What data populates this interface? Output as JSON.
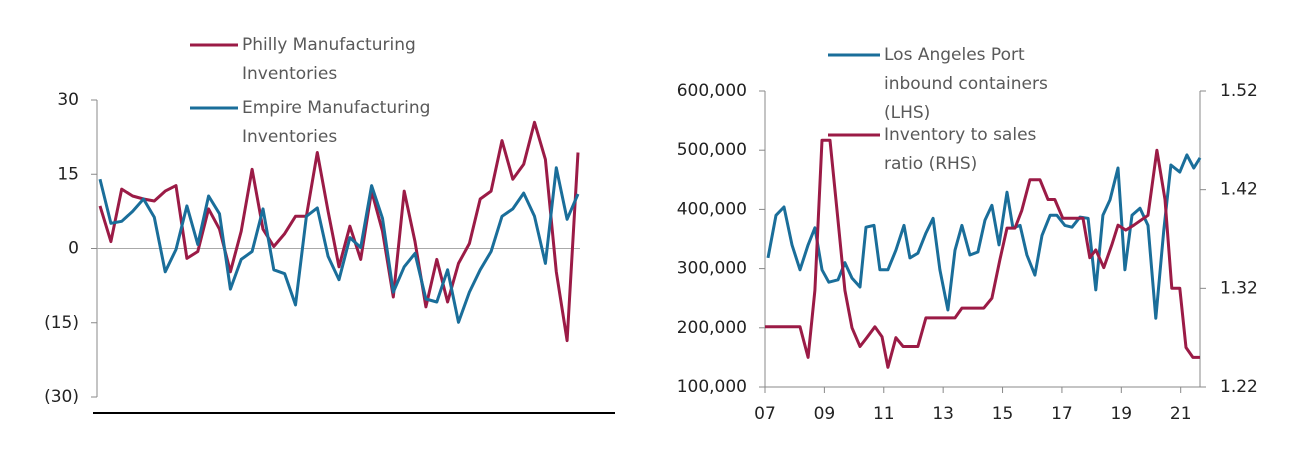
{
  "chart_data": [
    {
      "type": "line",
      "ylim": [
        -30,
        30
      ],
      "yticks": [
        {
          "value": -30,
          "label": "(30)"
        },
        {
          "value": -15,
          "label": "(15)"
        },
        0,
        15,
        30
      ],
      "series": [
        {
          "name": "Philly Manufacturing Inventories",
          "color": "#9b1b46",
          "values": [
            8.6,
            1.4,
            12,
            10.6,
            10,
            9.6,
            11.6,
            12.7,
            -2,
            -0.6,
            8,
            3.9,
            -4.7,
            3.5,
            16,
            3.9,
            0.4,
            3,
            6.5,
            6.5,
            19.4,
            7.5,
            -3.7,
            4.5,
            -2.2,
            11.6,
            3.5,
            -9.8,
            11.6,
            1.4,
            -11.8,
            -2.2,
            -10.8,
            -3,
            1,
            10,
            11.6,
            21.8,
            14,
            17,
            25.5,
            18,
            -4.7,
            -18.6,
            19.4
          ]
        },
        {
          "name": "Empire Manufacturing Inventories",
          "color": "#1a6e9a",
          "values": [
            14,
            5.1,
            5.5,
            7.5,
            10,
            6.3,
            -4.7,
            -0.2,
            8.6,
            0.8,
            10.6,
            7,
            -8.2,
            -2.2,
            -0.6,
            8,
            -4.3,
            -5.1,
            -11.4,
            6.5,
            8.2,
            -1.6,
            -6.3,
            2.2,
            0.2,
            12.7,
            6.1,
            -8.8,
            -3.7,
            -1,
            -10.2,
            -10.8,
            -4.3,
            -14.9,
            -8.8,
            -4.3,
            -0.6,
            6.5,
            8,
            11.2,
            6.5,
            -3,
            16.3,
            5.9,
            11
          ]
        }
      ]
    },
    {
      "type": "line",
      "xlim": [
        2007,
        2021.65
      ],
      "xticks": [
        {
          "value": 2007,
          "label": "07"
        },
        {
          "value": 2009,
          "label": "09"
        },
        {
          "value": 2011,
          "label": "11"
        },
        {
          "value": 2013,
          "label": "13"
        },
        {
          "value": 2015,
          "label": "15"
        },
        {
          "value": 2017,
          "label": "17"
        },
        {
          "value": 2019,
          "label": "19"
        },
        {
          "value": 2021,
          "label": "21"
        }
      ],
      "ylim": [
        100000,
        600000
      ],
      "yticks": [
        {
          "value": 100000,
          "label": "100,000"
        },
        {
          "value": 200000,
          "label": "200,000"
        },
        {
          "value": 300000,
          "label": "300,000"
        },
        {
          "value": 400000,
          "label": "400,000"
        },
        {
          "value": 500000,
          "label": "500,000"
        },
        {
          "value": 600000,
          "label": "600,000"
        }
      ],
      "y2lim": [
        1.22,
        1.52
      ],
      "y2ticks": [
        1.22,
        1.32,
        1.42,
        1.52
      ],
      "series": [
        {
          "name": "Los Angeles Port inbound containers (LHS)",
          "color": "#1a6e9a",
          "x": [
            2007.1,
            2007.37,
            2007.64,
            2007.91,
            2008.18,
            2008.45,
            2008.68,
            2008.92,
            2009.15,
            2009.46,
            2009.69,
            2009.93,
            2010.2,
            2010.4,
            2010.67,
            2010.87,
            2011.14,
            2011.41,
            2011.68,
            2011.88,
            2012.15,
            2012.42,
            2012.66,
            2012.89,
            2013.16,
            2013.4,
            2013.63,
            2013.9,
            2014.17,
            2014.41,
            2014.64,
            2014.88,
            2015.15,
            2015.35,
            2015.59,
            2015.82,
            2016.09,
            2016.33,
            2016.6,
            2016.83,
            2017.1,
            2017.34,
            2017.61,
            2017.88,
            2018.14,
            2018.38,
            2018.62,
            2018.89,
            2019.12,
            2019.36,
            2019.63,
            2019.9,
            2020.16,
            2020.43,
            2020.67,
            2020.97,
            2021.21,
            2021.44,
            2021.65
          ],
          "values": [
            318000,
            390000,
            404000,
            340000,
            298000,
            340000,
            369000,
            298000,
            277000,
            281000,
            310000,
            284000,
            269000,
            370000,
            373000,
            298000,
            298000,
            331000,
            373000,
            318000,
            326000,
            360000,
            385000,
            298000,
            230000,
            331000,
            373000,
            323000,
            328000,
            382000,
            407000,
            340000,
            429000,
            369000,
            373000,
            323000,
            289000,
            356000,
            390000,
            390000,
            373000,
            370000,
            387000,
            385000,
            264000,
            390000,
            416000,
            470000,
            298000,
            390000,
            402000,
            373000,
            216000,
            365000,
            475000,
            463000,
            492000,
            470000,
            487000
          ]
        },
        {
          "name": "Inventory to sales ratio  (RHS)",
          "color": "#9b1b46",
          "axis": "y2",
          "x": [
            2007.0,
            2008.18,
            2008.45,
            2008.68,
            2008.92,
            2009.19,
            2009.46,
            2009.69,
            2009.93,
            2010.2,
            2010.43,
            2010.7,
            2010.94,
            2011.14,
            2011.41,
            2011.65,
            2012.15,
            2012.42,
            2013.4,
            2013.63,
            2014.37,
            2014.64,
            2014.91,
            2015.15,
            2015.42,
            2015.65,
            2015.92,
            2016.26,
            2016.53,
            2016.76,
            2017.03,
            2017.71,
            2017.94,
            2018.14,
            2018.41,
            2018.68,
            2018.89,
            2019.15,
            2019.42,
            2019.9,
            2020.2,
            2020.47,
            2020.7,
            2020.97,
            2021.18,
            2021.41,
            2021.65
          ],
          "values": [
            1.281,
            1.281,
            1.25,
            1.318,
            1.47,
            1.47,
            1.389,
            1.318,
            1.28,
            1.261,
            1.27,
            1.281,
            1.271,
            1.24,
            1.27,
            1.261,
            1.261,
            1.29,
            1.29,
            1.3,
            1.3,
            1.31,
            1.349,
            1.381,
            1.381,
            1.399,
            1.43,
            1.43,
            1.41,
            1.41,
            1.391,
            1.391,
            1.351,
            1.359,
            1.341,
            1.364,
            1.384,
            1.379,
            1.384,
            1.394,
            1.46,
            1.41,
            1.32,
            1.32,
            1.26,
            1.25,
            1.25
          ]
        }
      ]
    }
  ]
}
